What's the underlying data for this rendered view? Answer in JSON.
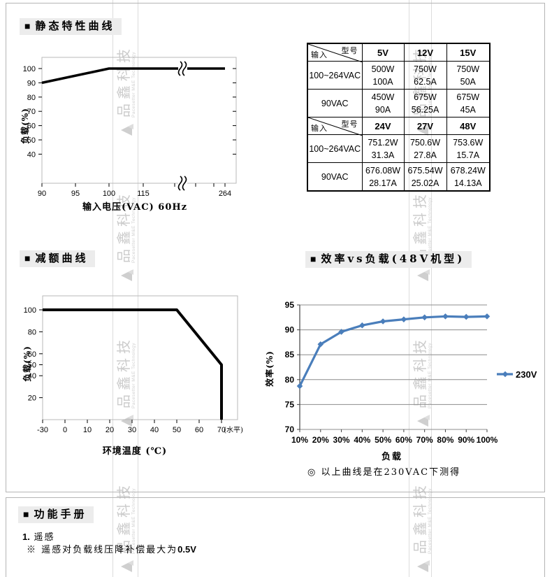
{
  "ui": {
    "bullet": "■",
    "accent_blue": "#4a7ebb",
    "frame_gray": "#b9b9b9",
    "grid_gray": "#8c8c8c",
    "title_bg": "#ececec",
    "watermark_color": "#cccccc"
  },
  "sections": {
    "static_curve_title": "静态特性曲线",
    "derating_title": "减额曲线",
    "efficiency_title": "效率vs负载(48V机型)",
    "manual_title": "功能手册"
  },
  "watermark": {
    "cn": "品鑫科技",
    "en": "Pacesetter M&E Technology"
  },
  "spec_table": {
    "corner_top_right": "型号",
    "corner_bottom_left": "输入",
    "blocks": [
      {
        "model_headers": [
          "5V",
          "12V",
          "15V"
        ],
        "rows": [
          {
            "input": "100~264VAC",
            "cells": [
              [
                "500W",
                "100A"
              ],
              [
                "750W",
                "62.5A"
              ],
              [
                "750W",
                "50A"
              ]
            ]
          },
          {
            "input": "90VAC",
            "cells": [
              [
                "450W",
                "90A"
              ],
              [
                "675W",
                "56.25A"
              ],
              [
                "675W",
                "45A"
              ]
            ]
          }
        ]
      },
      {
        "model_headers": [
          "24V",
          "27V",
          "48V"
        ],
        "rows": [
          {
            "input": "100~264VAC",
            "cells": [
              [
                "751.2W",
                "31.3A"
              ],
              [
                "750.6W",
                "27.8A"
              ],
              [
                "753.6W",
                "15.7A"
              ]
            ]
          },
          {
            "input": "90VAC",
            "cells": [
              [
                "676.08W",
                "28.17A"
              ],
              [
                "675.54W",
                "25.02A"
              ],
              [
                "678.24W",
                "14.13A"
              ]
            ]
          }
        ]
      }
    ]
  },
  "chart_data": [
    {
      "id": "static-characteristic",
      "type": "line",
      "title": "静态特性曲线",
      "xlabel": "输入电压(VAC) 60Hz",
      "ylabel": "负载(%)",
      "x_tick_labels": [
        "90",
        "95",
        "100",
        "115",
        "264"
      ],
      "x_axis_break_after": "115",
      "y_ticks": [
        40,
        50,
        60,
        70,
        80,
        90,
        100
      ],
      "ylim": [
        20,
        108
      ],
      "grid": false,
      "series": [
        {
          "name": "load_vs_input_voltage",
          "color": "#000000",
          "points": [
            [
              90,
              90
            ],
            [
              100,
              100
            ],
            [
              264,
              100
            ]
          ]
        }
      ]
    },
    {
      "id": "derating",
      "type": "line",
      "title": "减额曲线",
      "xlabel": "环境温度 (℃)",
      "ylabel": "负载(%)",
      "x_ticks": [
        -30,
        0,
        10,
        20,
        30,
        40,
        50,
        60,
        70
      ],
      "x_suffix_label": "(水平)",
      "y_ticks": [
        20,
        40,
        50,
        60,
        80,
        100
      ],
      "ylim": [
        0,
        112
      ],
      "grid": false,
      "series": [
        {
          "name": "load_vs_ambient_temperature",
          "color": "#000000",
          "points": [
            [
              -30,
              100
            ],
            [
              50,
              100
            ],
            [
              70,
              50
            ],
            [
              70,
              0
            ]
          ]
        }
      ]
    },
    {
      "id": "efficiency-vs-load-48v",
      "type": "line",
      "title": "效率vs负载(48V机型)",
      "xlabel": "负载",
      "ylabel": "效率(%)",
      "categories": [
        "10%",
        "20%",
        "30%",
        "40%",
        "50%",
        "60%",
        "70%",
        "80%",
        "90%",
        "100%"
      ],
      "y_ticks": [
        70,
        75,
        80,
        85,
        90,
        95
      ],
      "ylim": [
        70,
        95
      ],
      "grid": true,
      "legend_position": "right",
      "series": [
        {
          "name": "230V",
          "color": "#4a7ebb",
          "values": [
            78.7,
            87.1,
            89.6,
            90.9,
            91.7,
            92.1,
            92.5,
            92.7,
            92.6,
            92.7
          ]
        }
      ],
      "note": "◎ 以上曲线是在230VAC下测得"
    }
  ],
  "manual": {
    "items": [
      {
        "num": "1.",
        "label": "遥感",
        "note_prefix": "※ 遥感对负载线压降补偿最大为",
        "note_value": "0.5V"
      }
    ]
  }
}
